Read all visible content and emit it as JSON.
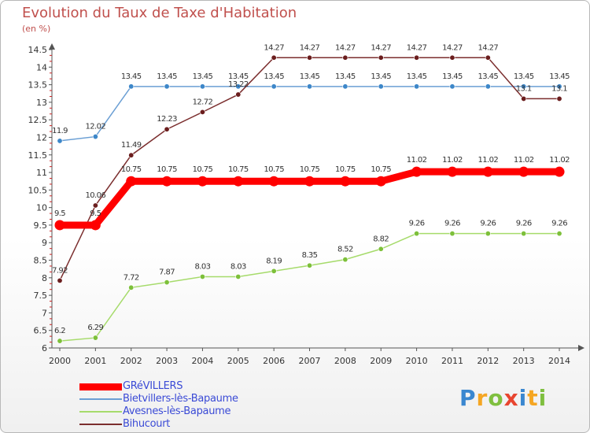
{
  "chart_data": {
    "type": "line",
    "title": "Evolution du Taux de Taxe d'Habitation",
    "subtitle": "(en %)",
    "categories": [
      "2000",
      "2001",
      "2002",
      "2003",
      "2004",
      "2005",
      "2006",
      "2007",
      "2008",
      "2009",
      "2010",
      "2011",
      "2012",
      "2013",
      "2014"
    ],
    "ylim": [
      6,
      14.5
    ],
    "yticks": [
      "6",
      "6.5",
      "7",
      "7.5",
      "8",
      "8.5",
      "9",
      "9.5",
      "10",
      "10.5",
      "11",
      "11.5",
      "12",
      "12.5",
      "13",
      "13.5",
      "14",
      "14.5"
    ],
    "grid": false,
    "legend_position": "bottom-left",
    "series": [
      {
        "name": "GRéVILLERS",
        "color": "#ff0000",
        "emphasis": true,
        "values": [
          9.5,
          9.5,
          10.75,
          10.75,
          10.75,
          10.75,
          10.75,
          10.75,
          10.75,
          10.75,
          11.02,
          11.02,
          11.02,
          11.02,
          11.02
        ],
        "labels": [
          "9.5",
          "9.5",
          "10.75",
          "10.75",
          "10.75",
          "10.75",
          "10.75",
          "10.75",
          "10.75",
          "10.75",
          "11.02",
          "11.02",
          "11.02",
          "11.02",
          "11.02"
        ]
      },
      {
        "name": "Bietvillers-lès-Bapaume",
        "color": "#6b9fd4",
        "marker": "#3d87c9",
        "values": [
          11.9,
          12.02,
          13.45,
          13.45,
          13.45,
          13.45,
          13.45,
          13.45,
          13.45,
          13.45,
          13.45,
          13.45,
          13.45,
          13.45,
          13.45
        ],
        "labels": [
          "11.9",
          "12.02",
          "13.45",
          "13.45",
          "13.45",
          "13.45",
          "13.45",
          "13.45",
          "13.45",
          "13.45",
          "13.45",
          "13.45",
          "13.45",
          "13.45",
          "13.45"
        ]
      },
      {
        "name": "Avesnes-lès-Bapaume",
        "color": "#a6db6b",
        "marker": "#7dc03a",
        "values": [
          6.2,
          6.29,
          7.72,
          7.87,
          8.03,
          8.03,
          8.19,
          8.35,
          8.52,
          8.82,
          9.26,
          9.26,
          9.26,
          9.26,
          9.26
        ],
        "labels": [
          "6.2",
          "6.29",
          "7.72",
          "7.87",
          "8.03",
          "8.03",
          "8.19",
          "8.35",
          "8.52",
          "8.82",
          "9.26",
          "9.26",
          "9.26",
          "9.26",
          "9.26"
        ]
      },
      {
        "name": "Bihucourt",
        "color": "#7b2e2e",
        "marker": "#6b1e1e",
        "values": [
          7.92,
          10.06,
          11.49,
          12.23,
          12.72,
          13.22,
          14.27,
          14.27,
          14.27,
          14.27,
          14.27,
          14.27,
          14.27,
          13.1,
          13.1
        ],
        "labels": [
          "7.92",
          "10.06",
          "11.49",
          "12.23",
          "12.72",
          "13.22",
          "14.27",
          "14.27",
          "14.27",
          "14.27",
          "14.27",
          "14.27",
          "14.27",
          "13.1",
          "13.1"
        ]
      }
    ]
  },
  "brand": {
    "letters": [
      "P",
      "r",
      "o",
      "x",
      "i",
      "t",
      "i"
    ],
    "colors": [
      "#3a87d0",
      "#f5a623",
      "#7fbf3f",
      "#e8452f",
      "#3a87d0",
      "#f5a623",
      "#7fbf3f"
    ]
  }
}
